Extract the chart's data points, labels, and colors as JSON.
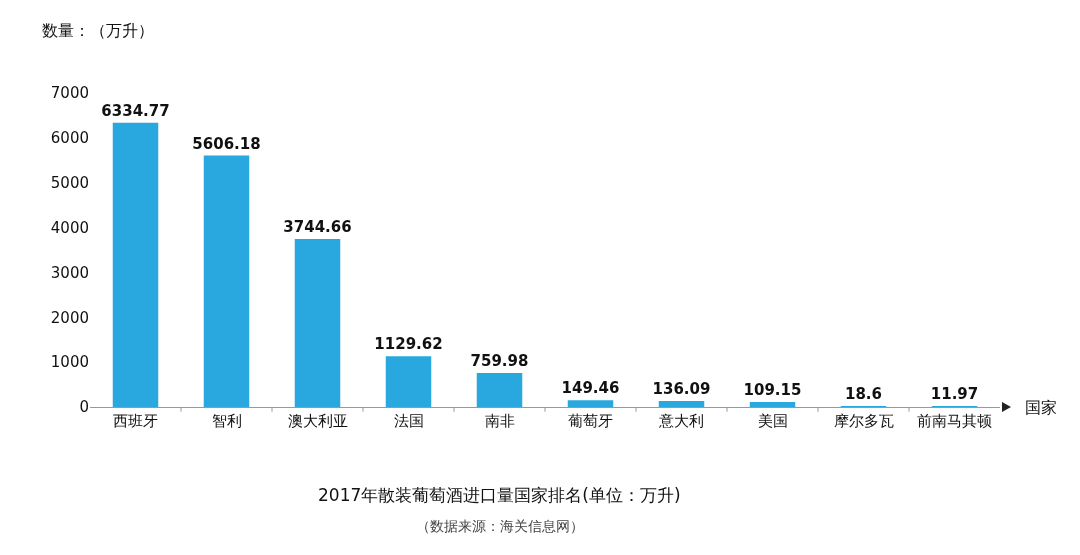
{
  "chart_data": {
    "type": "bar",
    "title": "2017年散装葡萄酒进口量国家排名(单位：万升)",
    "ylabel": "数量：（万升）",
    "xlabel": "国家",
    "categories": [
      "西班牙",
      "智利",
      "澳大利亚",
      "法国",
      "南非",
      "葡萄牙",
      "意大利",
      "美国",
      "摩尔多瓦",
      "前南马其顿"
    ],
    "values": [
      6334.77,
      5606.18,
      3744.66,
      1129.62,
      759.98,
      149.46,
      136.09,
      109.15,
      18.6,
      11.97
    ],
    "color": "#29a8e0",
    "ylim": [
      0,
      7000
    ],
    "yticks": [
      0,
      1000,
      2000,
      3000,
      4000,
      5000,
      6000,
      7000
    ],
    "grid": false,
    "data_labels": true,
    "annotations": [
      "（数据来源：海关信息网）"
    ]
  }
}
